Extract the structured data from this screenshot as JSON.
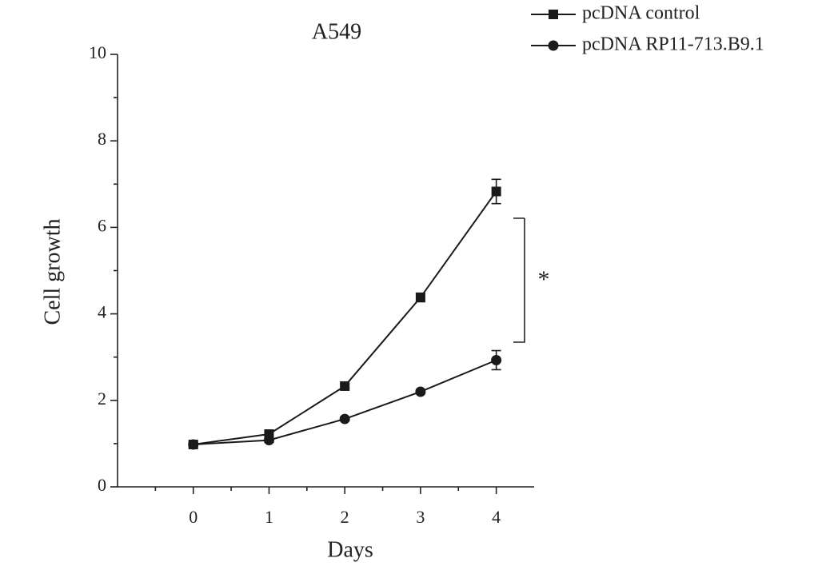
{
  "chart_data": {
    "type": "line",
    "title": "A549",
    "x_label": "Days",
    "y_label": "Cell growth",
    "x": [
      0,
      1,
      2,
      3,
      4
    ],
    "series": [
      {
        "name": "pcDNA control",
        "color": "#1a1a1a",
        "marker": "square",
        "values": [
          0.98,
          1.22,
          2.33,
          4.38,
          6.83
        ],
        "errors": [
          0.05,
          0.05,
          0.05,
          0.1,
          0.28
        ]
      },
      {
        "name": "pcDNA RP11-713.B9.1",
        "color": "#1a1a1a",
        "marker": "circle",
        "values": [
          0.98,
          1.08,
          1.57,
          2.2,
          2.93
        ],
        "errors": [
          0.05,
          0.05,
          0.04,
          0.05,
          0.22
        ]
      }
    ],
    "xlim": [
      -1,
      4.5
    ],
    "xticks": [
      0,
      1,
      2,
      3,
      4
    ],
    "ylim": [
      0,
      10
    ],
    "yticks": [
      0,
      2,
      4,
      6,
      8,
      10
    ],
    "annotation": "*",
    "legend": "upper right",
    "grid": false
  }
}
